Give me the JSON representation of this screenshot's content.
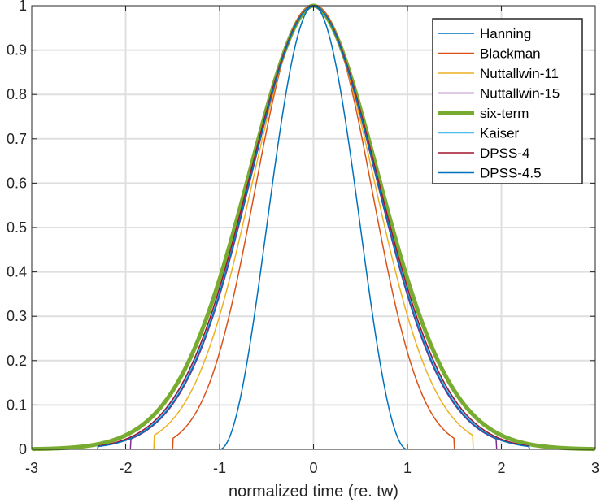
{
  "chart_data": {
    "type": "line",
    "title": "",
    "xlabel": "normalized time (re. tw)",
    "ylabel": "",
    "xlim": [
      -3,
      3
    ],
    "ylim": [
      0,
      1
    ],
    "xticks": [
      -3,
      -2,
      -1,
      0,
      1,
      2,
      3
    ],
    "xtick_labels": [
      "-3",
      "-2",
      "-1",
      "0",
      "1",
      "2",
      "3"
    ],
    "yticks": [
      0,
      0.1,
      0.2,
      0.3,
      0.4,
      0.5,
      0.6,
      0.7,
      0.8,
      0.9,
      1
    ],
    "ytick_labels": [
      "0",
      "0.1",
      "0.2",
      "0.3",
      "0.4",
      "0.5",
      "0.6",
      "0.7",
      "0.8",
      "0.9",
      "1"
    ],
    "grid": true,
    "legend_position": "top-right",
    "series": [
      {
        "name": "Hanning",
        "color": "#0072BD",
        "line_width": "thin",
        "support": 1.0,
        "x": [
          -1,
          -0.75,
          -0.5,
          -0.25,
          0,
          0.25,
          0.5,
          0.75,
          1
        ],
        "y": [
          0,
          0.146,
          0.5,
          0.854,
          1,
          0.854,
          0.5,
          0.146,
          0
        ]
      },
      {
        "name": "Blackman",
        "color": "#D95319",
        "line_width": "thin",
        "support": 1.5,
        "x": [
          -1.5,
          -1.25,
          -1,
          -0.75,
          -0.5,
          -0.25,
          0,
          0.25,
          0.5,
          0.75,
          1,
          1.25,
          1.5
        ],
        "y": [
          0,
          0.04,
          0.13,
          0.34,
          0.63,
          0.89,
          1,
          0.89,
          0.63,
          0.34,
          0.13,
          0.04,
          0
        ]
      },
      {
        "name": "Nuttallwin-11",
        "color": "#EDB120",
        "line_width": "thin",
        "support": 1.7,
        "x": [
          -1.7,
          -1.5,
          -1.25,
          -1,
          -0.75,
          -0.5,
          -0.25,
          0,
          0.25,
          0.5,
          0.75,
          1,
          1.25,
          1.5,
          1.7
        ],
        "y": [
          0,
          0.02,
          0.08,
          0.19,
          0.4,
          0.66,
          0.9,
          1,
          0.9,
          0.66,
          0.4,
          0.19,
          0.08,
          0.02,
          0
        ]
      },
      {
        "name": "Nuttallwin-15",
        "color": "#7E2F8E",
        "line_width": "thin",
        "support": 1.95,
        "x": [
          -1.95,
          -1.5,
          -1.25,
          -1,
          -0.75,
          -0.5,
          -0.25,
          0,
          0.25,
          0.5,
          0.75,
          1,
          1.25,
          1.5,
          1.95
        ],
        "y": [
          0,
          0.06,
          0.13,
          0.25,
          0.45,
          0.7,
          0.91,
          1,
          0.91,
          0.7,
          0.45,
          0.25,
          0.13,
          0.06,
          0
        ]
      },
      {
        "name": "six-term",
        "color": "#77AC30",
        "line_width": "thick",
        "support": 3.0,
        "x": [
          -3,
          -2,
          -1.75,
          -1.5,
          -1.25,
          -1,
          -0.75,
          -0.5,
          -0.25,
          0,
          0.25,
          0.5,
          0.75,
          1,
          1.25,
          1.5,
          1.75,
          2,
          3
        ],
        "y": [
          0,
          0.01,
          0.04,
          0.09,
          0.17,
          0.3,
          0.5,
          0.73,
          0.92,
          1,
          0.92,
          0.73,
          0.5,
          0.3,
          0.17,
          0.09,
          0.04,
          0.01,
          0
        ]
      },
      {
        "name": "Kaiser",
        "color": "#4DBEEE",
        "line_width": "thin",
        "support": 2.3,
        "x": [
          -2.3,
          -2,
          -1.5,
          -1.25,
          -1,
          -0.75,
          -0.5,
          -0.25,
          0,
          0.25,
          0.5,
          0.75,
          1,
          1.25,
          1.5,
          2,
          2.3
        ],
        "y": [
          0,
          0.01,
          0.07,
          0.14,
          0.26,
          0.47,
          0.71,
          0.91,
          1,
          0.91,
          0.71,
          0.47,
          0.26,
          0.14,
          0.07,
          0.01,
          0
        ]
      },
      {
        "name": "DPSS-4",
        "color": "#A2142F",
        "line_width": "thin",
        "support": 2.3,
        "x": [
          -2.3,
          -2,
          -1.5,
          -1.25,
          -1,
          -0.75,
          -0.5,
          -0.25,
          0,
          0.25,
          0.5,
          0.75,
          1,
          1.25,
          1.5,
          2,
          2.3
        ],
        "y": [
          0,
          0.01,
          0.07,
          0.14,
          0.27,
          0.47,
          0.71,
          0.91,
          1,
          0.91,
          0.71,
          0.47,
          0.27,
          0.14,
          0.07,
          0.01,
          0
        ]
      },
      {
        "name": "DPSS-4.5",
        "color": "#0072BD",
        "line_width": "thin",
        "support": 2.3,
        "x": [
          -2.3,
          -2,
          -1.5,
          -1.25,
          -1,
          -0.75,
          -0.5,
          -0.25,
          0,
          0.25,
          0.5,
          0.75,
          1,
          1.25,
          1.5,
          2,
          2.3
        ],
        "y": [
          0,
          0.01,
          0.06,
          0.13,
          0.25,
          0.46,
          0.7,
          0.91,
          1,
          0.91,
          0.7,
          0.46,
          0.25,
          0.13,
          0.06,
          0.01,
          0
        ]
      }
    ]
  }
}
